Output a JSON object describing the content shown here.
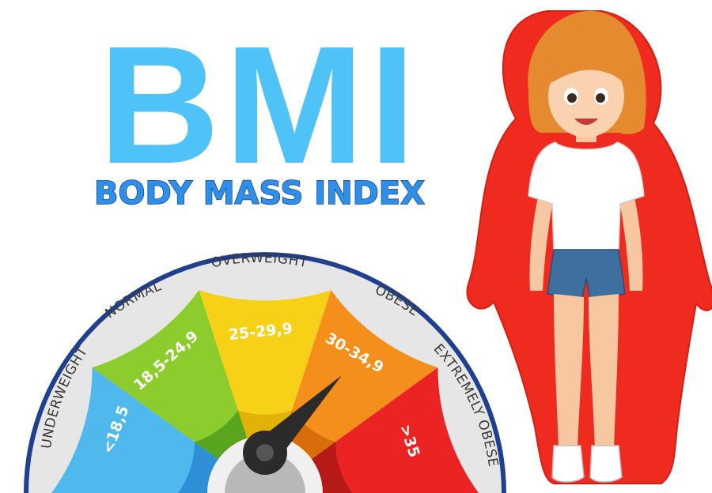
{
  "title": "BMI",
  "subtitle": "BODY MASS INDEX",
  "gauge": {
    "categories": [
      {
        "label": "UNDERWEIGHT",
        "range": "<18,5",
        "color": "#4fb8ec",
        "dark": "#2f8fd6"
      },
      {
        "label": "NORMAL",
        "range": "18,5-24,9",
        "color": "#8ccc2c",
        "dark": "#5aa51e"
      },
      {
        "label": "OVERWEIGHT",
        "range": "25-29,9",
        "color": "#f6d118",
        "dark": "#e2b208"
      },
      {
        "label": "OBESE",
        "range": "30-34,9",
        "color": "#f58f1b",
        "dark": "#d86d0c"
      },
      {
        "label": "EXTREMELY OBESE",
        "range": ">35",
        "color": "#eb2323",
        "dark": "#b51a16"
      }
    ],
    "needle_category": "30-34,9"
  },
  "colors": {
    "title": "#4fc3f7",
    "subtitle": "#2f8fe6",
    "ring": "#e6e6e6",
    "ring_border": "#1f3f8f",
    "body_outline": "#ef2b1f"
  },
  "icons": {
    "figure": "girl-figure-icon"
  }
}
